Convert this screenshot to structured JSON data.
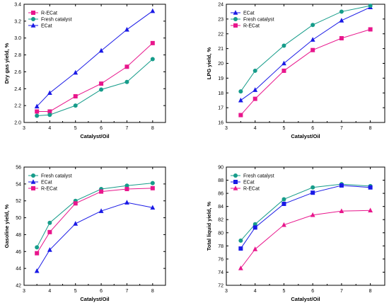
{
  "figure_title": "",
  "colors": {
    "R-ECat": "#e8168c",
    "ECat": "#1a1ae6",
    "Fresh catalyst": "#169c8a"
  },
  "chart_data": [
    {
      "type": "line",
      "title": "",
      "xlabel": "Catalyst/Oil",
      "ylabel": "Dry gas yield, %",
      "xlim": [
        3,
        8.5
      ],
      "ylim": [
        2.0,
        3.4
      ],
      "xticks": [
        3,
        4,
        5,
        6,
        7,
        8
      ],
      "yticks": [
        2.0,
        2.2,
        2.4,
        2.6,
        2.8,
        3.0,
        3.2,
        3.4
      ],
      "ytick_labels": [
        "2.0",
        "2.2",
        "2.4",
        "2.6",
        "2.8",
        "3.0",
        "3.2",
        "3.4"
      ],
      "legend_position": "top-left",
      "x": [
        3.5,
        4,
        5,
        6,
        7,
        8
      ],
      "series": [
        {
          "name": "R-ECat",
          "marker": "square",
          "values": [
            2.13,
            2.13,
            2.31,
            2.46,
            2.66,
            2.94
          ]
        },
        {
          "name": "Fresh catalyst",
          "marker": "circle",
          "values": [
            2.08,
            2.09,
            2.2,
            2.39,
            2.48,
            2.75
          ]
        },
        {
          "name": "ECat",
          "marker": "triangle",
          "values": [
            2.19,
            2.35,
            2.59,
            2.85,
            3.1,
            3.32
          ]
        }
      ]
    },
    {
      "type": "line",
      "title": "",
      "xlabel": "Catalyst/Oil",
      "ylabel": "LPG yield, %",
      "xlim": [
        3,
        8.5
      ],
      "ylim": [
        16,
        24
      ],
      "xticks": [
        3,
        4,
        5,
        6,
        7,
        8
      ],
      "yticks": [
        16,
        17,
        18,
        19,
        20,
        21,
        22,
        23,
        24
      ],
      "ytick_labels": [
        "16",
        "17",
        "18",
        "19",
        "20",
        "21",
        "22",
        "23",
        "24"
      ],
      "legend_position": "top-left",
      "x": [
        3.5,
        4,
        5,
        6,
        7,
        8
      ],
      "series": [
        {
          "name": "ECat",
          "marker": "triangle",
          "values": [
            17.5,
            18.2,
            20.0,
            21.6,
            22.9,
            23.8
          ]
        },
        {
          "name": "Fresh catalyst",
          "marker": "circle",
          "values": [
            18.1,
            19.5,
            21.2,
            22.6,
            23.5,
            23.9
          ]
        },
        {
          "name": "R-ECat",
          "marker": "square",
          "values": [
            16.5,
            17.6,
            19.5,
            20.9,
            21.7,
            22.3
          ]
        }
      ]
    },
    {
      "type": "line",
      "title": "",
      "xlabel": "Catalyst/Oil",
      "ylabel": "Gasoline yield, %",
      "xlim": [
        3,
        8.5
      ],
      "ylim": [
        42,
        56
      ],
      "xticks": [
        3,
        4,
        5,
        6,
        7,
        8
      ],
      "yticks": [
        42,
        44,
        46,
        48,
        50,
        52,
        54,
        56
      ],
      "ytick_labels": [
        "42",
        "44",
        "46",
        "48",
        "50",
        "52",
        "54",
        "56"
      ],
      "legend_position": "top-left",
      "x": [
        3.5,
        4,
        5,
        6,
        7,
        8
      ],
      "series": [
        {
          "name": "Fresh catalyst",
          "marker": "circle",
          "values": [
            46.5,
            49.4,
            52.0,
            53.4,
            53.8,
            54.1
          ]
        },
        {
          "name": "ECat",
          "marker": "triangle",
          "values": [
            43.7,
            46.2,
            49.3,
            50.8,
            51.8,
            51.2
          ]
        },
        {
          "name": "R-ECat",
          "marker": "square",
          "values": [
            45.8,
            48.3,
            51.7,
            53.1,
            53.4,
            53.5
          ]
        }
      ]
    },
    {
      "type": "line",
      "title": "",
      "xlabel": "Catalyst/Oil",
      "ylabel": "Total liquid yield, %",
      "xlim": [
        3,
        8.5
      ],
      "ylim": [
        72,
        90
      ],
      "xticks": [
        3,
        4,
        5,
        6,
        7,
        8
      ],
      "yticks": [
        72,
        74,
        76,
        78,
        80,
        82,
        84,
        86,
        88,
        90
      ],
      "ytick_labels": [
        "72",
        "74",
        "76",
        "78",
        "80",
        "82",
        "84",
        "86",
        "88",
        "90"
      ],
      "legend_position": "top-left",
      "x": [
        3.5,
        4,
        5,
        6,
        7,
        8
      ],
      "series": [
        {
          "name": "Fresh catalyst",
          "marker": "circle",
          "values": [
            78.8,
            81.3,
            85.1,
            86.9,
            87.4,
            87.1
          ]
        },
        {
          "name": "ECat",
          "marker": "square",
          "values": [
            77.6,
            80.8,
            84.4,
            86.1,
            87.2,
            86.9
          ]
        },
        {
          "name": "R-ECat",
          "marker": "triangle",
          "values": [
            74.6,
            77.5,
            81.2,
            82.7,
            83.3,
            83.4
          ]
        }
      ]
    }
  ]
}
